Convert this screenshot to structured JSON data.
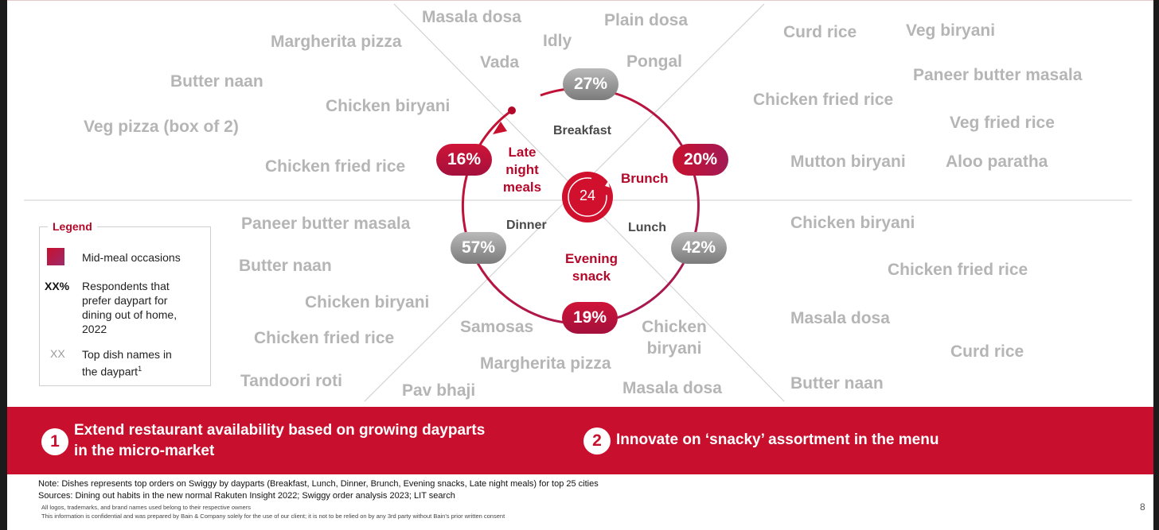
{
  "colors": {
    "accent_red": "#c8102e",
    "dish_grey": "#b5b5b5",
    "mid_meal_gradient": [
      "#c8102e",
      "#9c2a6b"
    ]
  },
  "clock_label": "24",
  "dayparts": {
    "breakfast": "Breakfast",
    "brunch": "Brunch",
    "lunch": "Lunch",
    "evening": [
      "Evening",
      "snack"
    ],
    "dinner": "Dinner",
    "late_night": [
      "Late",
      "night",
      "meals"
    ]
  },
  "percentages": {
    "breakfast": "27%",
    "brunch": "20%",
    "lunch": "42%",
    "evening": "19%",
    "dinner": "57%",
    "late_night": "16%"
  },
  "dishes": {
    "breakfast": [
      "Masala dosa",
      "Plain dosa",
      "Idly",
      "Vada",
      "Pongal"
    ],
    "late_night": [
      "Margherita pizza",
      "Butter naan",
      "Chicken biryani",
      "Veg pizza (box of 2)",
      "Chicken fried rice"
    ],
    "brunch": [
      "Curd rice",
      "Veg biryani",
      "Paneer butter masala",
      "Chicken fried rice",
      "Veg fried rice",
      "Mutton biryani",
      "Aloo paratha"
    ],
    "lunch": [
      "Chicken biryani",
      "Chicken fried rice",
      "Masala dosa",
      "Curd rice",
      "Butter naan"
    ],
    "dinner": [
      "Paneer butter masala",
      "Butter naan",
      "Chicken biryani",
      "Chicken fried rice",
      "Tandoori roti"
    ],
    "evening": [
      "Samosas",
      "Chicken biryani",
      "Margherita pizza",
      "Pav bhaji",
      "Masala dosa"
    ]
  },
  "legend": {
    "title": "Legend",
    "mid_meal": "Mid-meal occasions",
    "pct_key": "XX%",
    "pct_desc": [
      "Respondents that",
      "prefer daypart for",
      "dining out of home,",
      "2022"
    ],
    "dish_key": "XX",
    "dish_desc": [
      "Top dish names in",
      "the daypart"
    ],
    "dish_sup": "1"
  },
  "takeaways": [
    {
      "num": "1",
      "lines": [
        "Extend restaurant availability based on growing dayparts",
        "in the micro-market"
      ]
    },
    {
      "num": "2",
      "lines": [
        "Innovate on ‘snacky’ assortment in the menu"
      ]
    }
  ],
  "footer": {
    "note": "Note: Dishes represents top orders on Swiggy by dayparts (Breakfast, Lunch, Dinner, Brunch, Evening snacks, Late night meals) for top 25 cities",
    "sources": "Sources: Dining out habits in the new normal Rakuten Insight 2022; Swiggy order analysis 2023; LIT search",
    "fine1": "All logos, trademarks, and brand names used belong to their respective owners",
    "fine2": "This information is confidential and was prepared by Bain & Company solely for the use of our client; it is not to be relied on by any 3rd party without Bain's prior written consent",
    "page": "8"
  }
}
